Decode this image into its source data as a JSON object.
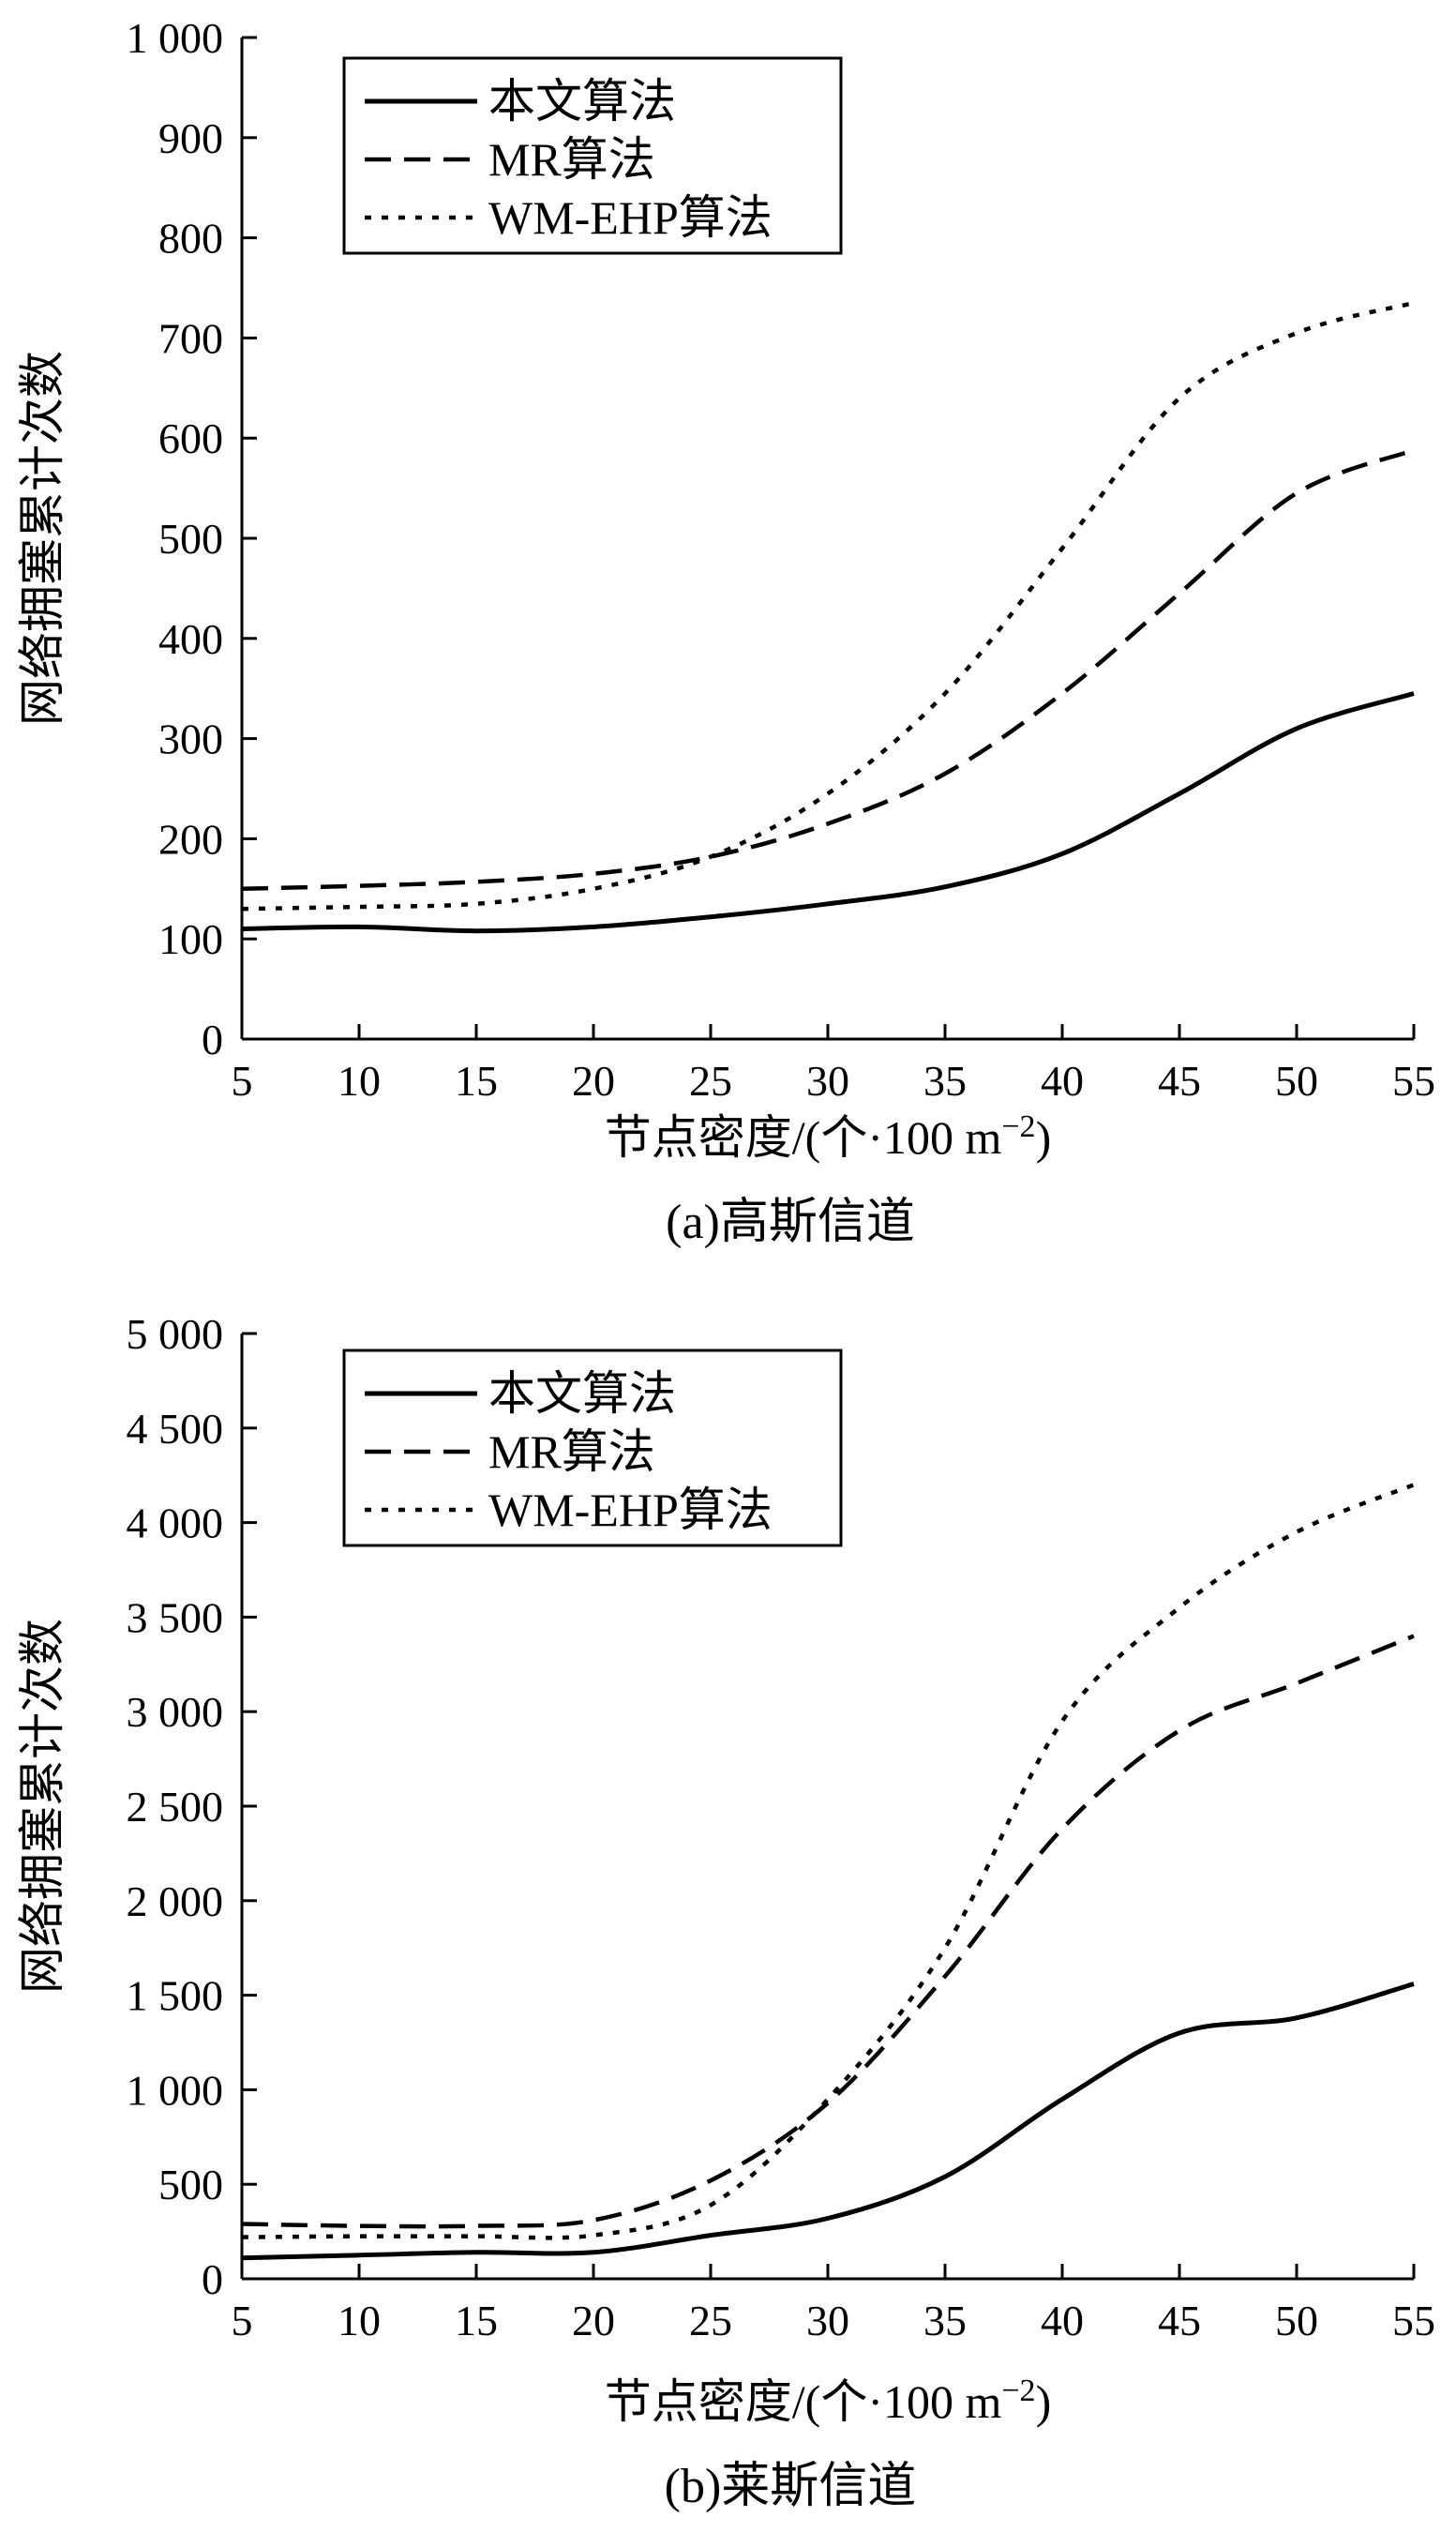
{
  "chart_data": [
    {
      "type": "line",
      "caption": "(a)高斯信道",
      "xlabel": "节点密度/(个·100 m",
      "xlabel_sup": "−2",
      "xlabel_close": ")",
      "ylabel": "网络拥塞累计次数",
      "xlim": [
        5,
        55
      ],
      "ylim": [
        0,
        1000
      ],
      "x_ticks": [
        5,
        10,
        15,
        20,
        25,
        30,
        35,
        40,
        45,
        50,
        55
      ],
      "y_ticks": [
        0,
        100,
        200,
        300,
        400,
        500,
        600,
        700,
        800,
        900,
        1000
      ],
      "y_tick_labels": [
        "0",
        "100",
        "200",
        "300",
        "400",
        "500",
        "600",
        "700",
        "800",
        "900",
        "1 000"
      ],
      "grid": false,
      "legend_position": "top-left",
      "series": [
        {
          "name": "本文算法",
          "style": "solid",
          "x": [
            5,
            10,
            15,
            20,
            25,
            30,
            35,
            40,
            45,
            50,
            55
          ],
          "y": [
            110,
            112,
            108,
            112,
            122,
            135,
            152,
            185,
            245,
            310,
            345
          ]
        },
        {
          "name": "MR算法",
          "style": "dashed",
          "x": [
            5,
            10,
            15,
            20,
            25,
            30,
            35,
            40,
            45,
            50,
            55
          ],
          "y": [
            150,
            153,
            157,
            165,
            182,
            215,
            265,
            345,
            445,
            545,
            588
          ]
        },
        {
          "name": "WM-EHP算法",
          "style": "dotted",
          "x": [
            5,
            10,
            15,
            20,
            25,
            30,
            35,
            40,
            45,
            50,
            55
          ],
          "y": [
            130,
            132,
            135,
            150,
            182,
            245,
            345,
            490,
            640,
            705,
            735
          ]
        }
      ]
    },
    {
      "type": "line",
      "caption": "(b)莱斯信道",
      "xlabel": "节点密度/(个·100 m",
      "xlabel_sup": "−2",
      "xlabel_close": ")",
      "ylabel": "网络拥塞累计次数",
      "xlim": [
        5,
        55
      ],
      "ylim": [
        0,
        5000
      ],
      "x_ticks": [
        5,
        10,
        15,
        20,
        25,
        30,
        35,
        40,
        45,
        50,
        55
      ],
      "y_ticks": [
        0,
        500,
        1000,
        1500,
        2000,
        2500,
        3000,
        3500,
        4000,
        4500,
        5000
      ],
      "y_tick_labels": [
        "0",
        "500",
        "1 000",
        "1 500",
        "2 000",
        "2 500",
        "3 000",
        "3 500",
        "4 000",
        "4 500",
        "5 000"
      ],
      "grid": false,
      "legend_position": "top-left",
      "series": [
        {
          "name": "本文算法",
          "style": "solid",
          "x": [
            5,
            10,
            15,
            20,
            25,
            30,
            35,
            40,
            45,
            50,
            55
          ],
          "y": [
            110,
            125,
            140,
            140,
            230,
            320,
            540,
            950,
            1300,
            1380,
            1560
          ]
        },
        {
          "name": "MR算法",
          "style": "dashed",
          "x": [
            5,
            10,
            15,
            20,
            25,
            30,
            35,
            40,
            45,
            50,
            55
          ],
          "y": [
            290,
            280,
            280,
            310,
            520,
            930,
            1600,
            2380,
            2900,
            3150,
            3400
          ]
        },
        {
          "name": "WM-EHP算法",
          "style": "dotted",
          "x": [
            5,
            10,
            15,
            20,
            25,
            30,
            35,
            40,
            45,
            50,
            55
          ],
          "y": [
            220,
            225,
            225,
            230,
            390,
            950,
            1750,
            2950,
            3550,
            3950,
            4200
          ]
        }
      ]
    }
  ]
}
